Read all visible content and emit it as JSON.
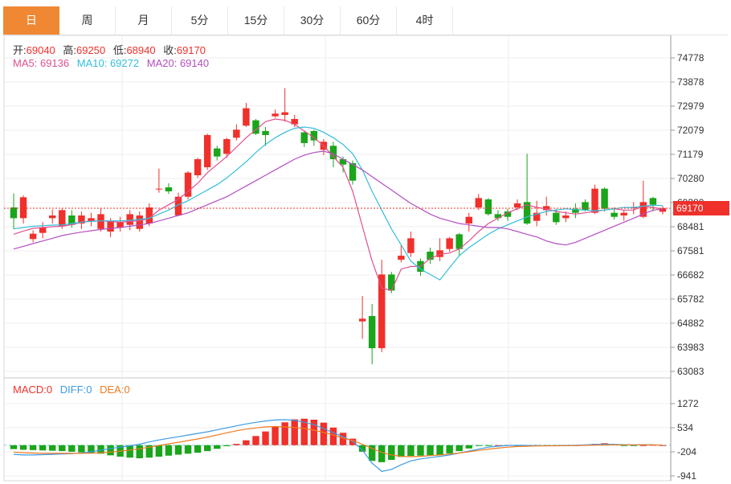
{
  "tabs": [
    {
      "label": "日",
      "active": true
    },
    {
      "label": "周",
      "active": false
    },
    {
      "label": "月",
      "active": false
    },
    {
      "label": "5分",
      "active": false
    },
    {
      "label": "15分",
      "active": false
    },
    {
      "label": "30分",
      "active": false
    },
    {
      "label": "60分",
      "active": false
    },
    {
      "label": "4时",
      "active": false
    }
  ],
  "ohlc_info": {
    "open_label": "开:",
    "open": "69040",
    "high_label": "高:",
    "high": "69250",
    "low_label": "低:",
    "low": "68940",
    "close_label": "收:",
    "close": "69170"
  },
  "ma_info": {
    "ma5_label": "MA5:",
    "ma5": "69136",
    "ma10_label": "MA10:",
    "ma10": "69272",
    "ma20_label": "MA20:",
    "ma20": "69140"
  },
  "macd_info": {
    "macd_label": "MACD:",
    "macd": "0",
    "diff_label": "DIFF:",
    "diff": "0",
    "dea_label": "DEA:",
    "dea": "0"
  },
  "last_price": "69170",
  "colors": {
    "up": "#f0302b",
    "down": "#1aa51a",
    "ma5": "#e0508f",
    "ma10": "#33bedb",
    "ma20": "#b44fc2",
    "diff": "#3c9be6",
    "dea": "#f07a1f",
    "tab_active": "#f08833"
  },
  "chart_data": {
    "type": "candlestick",
    "price_axis": {
      "min": 63083,
      "max": 74778,
      "ticks": [
        "74778",
        "73878",
        "72979",
        "72079",
        "71179",
        "70280",
        "69380",
        "68481",
        "67581",
        "66682",
        "65782",
        "64882",
        "63983",
        "63083"
      ]
    },
    "macd_axis": {
      "min": -941,
      "max": 1272,
      "ticks": [
        "1272",
        "534",
        "-204",
        "-941"
      ]
    },
    "candles": [
      [
        69200,
        68800,
        69720,
        68400
      ],
      [
        68800,
        69580,
        69650,
        68600
      ],
      [
        68020,
        68220,
        68350,
        67900
      ],
      [
        68250,
        68450,
        68650,
        68050
      ],
      [
        68800,
        68900,
        69120,
        68600
      ],
      [
        68500,
        69100,
        69150,
        68400
      ],
      [
        68900,
        68550,
        69100,
        68450
      ],
      [
        68600,
        68900,
        69050,
        68400
      ],
      [
        68700,
        68800,
        69000,
        68500
      ],
      [
        68400,
        68950,
        69150,
        68300
      ],
      [
        68300,
        68700,
        68800,
        68100
      ],
      [
        68450,
        68650,
        68850,
        68300
      ],
      [
        68550,
        68950,
        69100,
        68350
      ],
      [
        68400,
        68900,
        69050,
        68300
      ],
      [
        68600,
        69200,
        69350,
        68500
      ],
      [
        69900,
        69900,
        70650,
        69750
      ],
      [
        69950,
        69800,
        70100,
        69700
      ],
      [
        68900,
        69600,
        69750,
        68900
      ],
      [
        69600,
        70500,
        70550,
        69500
      ],
      [
        70400,
        71000,
        71050,
        70300
      ],
      [
        70700,
        71900,
        71950,
        70600
      ],
      [
        71400,
        71100,
        71500,
        70950
      ],
      [
        71200,
        71750,
        71800,
        71050
      ],
      [
        71800,
        72100,
        72300,
        71700
      ],
      [
        72250,
        72900,
        73100,
        72200
      ],
      [
        72450,
        71950,
        72500,
        71900
      ],
      [
        72050,
        71900,
        72200,
        71500
      ],
      [
        72600,
        72700,
        72850,
        72550
      ],
      [
        72650,
        72750,
        73650,
        72400
      ],
      [
        72300,
        72500,
        72650,
        72200
      ],
      [
        72000,
        71600,
        72050,
        71450
      ],
      [
        72050,
        71700,
        72100,
        71500
      ],
      [
        71350,
        71650,
        71750,
        71150
      ],
      [
        71500,
        71000,
        71650,
        70700
      ],
      [
        71000,
        70800,
        71100,
        70500
      ],
      [
        70850,
        70200,
        70950,
        70050
      ],
      [
        64950,
        65050,
        65900,
        64300
      ],
      [
        65150,
        63950,
        65600,
        63350
      ],
      [
        63950,
        66700,
        67250,
        63800
      ],
      [
        66700,
        66100,
        66800,
        66000
      ],
      [
        67250,
        67400,
        67800,
        67150
      ],
      [
        67500,
        68050,
        68300,
        67350
      ],
      [
        67200,
        66800,
        67300,
        66650
      ],
      [
        67550,
        67250,
        67700,
        67100
      ],
      [
        67350,
        67600,
        68050,
        67200
      ],
      [
        67650,
        68050,
        68100,
        67550
      ],
      [
        68200,
        67650,
        68250,
        67400
      ],
      [
        68600,
        68850,
        69000,
        68300
      ],
      [
        69200,
        69550,
        69700,
        69100
      ],
      [
        69500,
        68950,
        69550,
        68900
      ],
      [
        68950,
        68800,
        69100,
        68700
      ],
      [
        69050,
        68850,
        69150,
        68700
      ],
      [
        69200,
        69350,
        69500,
        69100
      ],
      [
        69400,
        68600,
        71200,
        68550
      ],
      [
        68700,
        69000,
        69450,
        68500
      ],
      [
        69100,
        69250,
        69600,
        68900
      ],
      [
        69000,
        68650,
        69150,
        68550
      ],
      [
        68800,
        68900,
        69050,
        68650
      ],
      [
        69150,
        69000,
        69350,
        68800
      ],
      [
        69400,
        69100,
        69500,
        69050
      ],
      [
        69000,
        69900,
        70050,
        68950
      ],
      [
        69900,
        69150,
        69950,
        69050
      ],
      [
        69000,
        68850,
        69200,
        68750
      ],
      [
        68900,
        69000,
        69100,
        68700
      ],
      [
        69200,
        69200,
        69400,
        68950
      ],
      [
        68850,
        69400,
        70200,
        68800
      ],
      [
        69550,
        69300,
        69600,
        69050
      ],
      [
        69040,
        69170,
        69250,
        68940
      ]
    ],
    "ma_series": [
      {
        "name": "MA5",
        "values": [
          68200,
          68320,
          68420,
          68450,
          68480,
          68500,
          68560,
          68650,
          68700,
          68700,
          68680,
          68650,
          68680,
          68700,
          68800,
          69100,
          69300,
          69500,
          69800,
          70100,
          70500,
          70800,
          71100,
          71450,
          71800,
          72100,
          72400,
          72500,
          72450,
          72300,
          72050,
          71800,
          71500,
          71100,
          70700,
          69800,
          68500,
          67200,
          66200,
          66100,
          66900,
          67000,
          67000,
          67300,
          67450,
          67500,
          67650,
          67950,
          68300,
          68600,
          68800,
          69000,
          69150,
          69300,
          69200,
          69150,
          69050,
          69000,
          68950,
          69000,
          69050,
          69100,
          69150,
          69100,
          69100,
          69250,
          69200,
          69136
        ]
      },
      {
        "name": "MA10",
        "values": [
          68400,
          68450,
          68500,
          68520,
          68540,
          68550,
          68600,
          68650,
          68680,
          68700,
          68700,
          68700,
          68720,
          68750,
          68800,
          68950,
          69100,
          69300,
          69450,
          69650,
          69850,
          70050,
          70300,
          70600,
          70900,
          71250,
          71550,
          71800,
          72000,
          72150,
          72200,
          72150,
          72000,
          71800,
          71550,
          71200,
          70600,
          69800,
          69100,
          68400,
          67800,
          67200,
          66900,
          66700,
          66500,
          66950,
          67400,
          67700,
          67950,
          68200,
          68400,
          68550,
          68700,
          68850,
          68950,
          69050,
          69100,
          69150,
          69120,
          69100,
          69080,
          69100,
          69150,
          69200,
          69200,
          69250,
          69280,
          69272
        ]
      },
      {
        "name": "MA20",
        "values": [
          67650,
          67750,
          67850,
          67950,
          68050,
          68150,
          68220,
          68280,
          68330,
          68380,
          68420,
          68450,
          68500,
          68550,
          68600,
          68700,
          68800,
          68900,
          69000,
          69150,
          69300,
          69450,
          69600,
          69800,
          70000,
          70200,
          70400,
          70600,
          70800,
          71000,
          71150,
          71250,
          71300,
          71200,
          71000,
          70800,
          70600,
          70350,
          70100,
          69850,
          69600,
          69350,
          69150,
          68950,
          68800,
          68700,
          68600,
          68550,
          68500,
          68450,
          68450,
          68400,
          68300,
          68200,
          68100,
          67950,
          67850,
          67800,
          67900,
          68050,
          68200,
          68350,
          68500,
          68650,
          68800,
          68950,
          69100,
          69140
        ]
      }
    ],
    "macd": {
      "hist": [
        -120,
        -140,
        -150,
        -160,
        -170,
        -180,
        -200,
        -220,
        -240,
        -260,
        -310,
        -350,
        -380,
        -400,
        -380,
        -350,
        -320,
        -290,
        -260,
        -230,
        -180,
        -110,
        -30,
        40,
        150,
        280,
        420,
        560,
        700,
        790,
        810,
        780,
        690,
        540,
        380,
        200,
        -200,
        -480,
        -520,
        -450,
        -360,
        -330,
        -320,
        -310,
        -300,
        -250,
        -180,
        -100,
        -20,
        -10,
        0,
        5,
        -10,
        -20,
        -25,
        -30,
        -20,
        -10,
        0,
        15,
        40,
        60,
        30,
        -10,
        -15,
        0,
        10,
        0
      ],
      "diff": [
        -280,
        -300,
        -300,
        -290,
        -280,
        -270,
        -260,
        -240,
        -200,
        -150,
        -100,
        -60,
        -20,
        30,
        100,
        160,
        210,
        260,
        310,
        360,
        410,
        470,
        530,
        590,
        650,
        700,
        740,
        770,
        780,
        760,
        700,
        630,
        510,
        380,
        260,
        120,
        -150,
        -550,
        -800,
        -740,
        -600,
        -480,
        -420,
        -380,
        -340,
        -300,
        -240,
        -180,
        -120,
        -60,
        -30,
        -10,
        -5,
        -10,
        -15,
        -20,
        -15,
        -10,
        -5,
        10,
        20,
        30,
        25,
        15,
        10,
        15,
        10,
        0
      ],
      "dea": [
        -210,
        -230,
        -240,
        -250,
        -250,
        -250,
        -250,
        -250,
        -245,
        -230,
        -210,
        -180,
        -150,
        -110,
        -60,
        -10,
        40,
        90,
        140,
        190,
        250,
        310,
        380,
        440,
        490,
        530,
        560,
        570,
        560,
        540,
        510,
        460,
        390,
        310,
        220,
        140,
        30,
        -100,
        -220,
        -300,
        -340,
        -350,
        -340,
        -320,
        -300,
        -270,
        -240,
        -200,
        -160,
        -120,
        -90,
        -60,
        -40,
        -30,
        -25,
        -20,
        -18,
        -15,
        -12,
        -5,
        0,
        5,
        10,
        10,
        10,
        12,
        10,
        0
      ]
    }
  }
}
